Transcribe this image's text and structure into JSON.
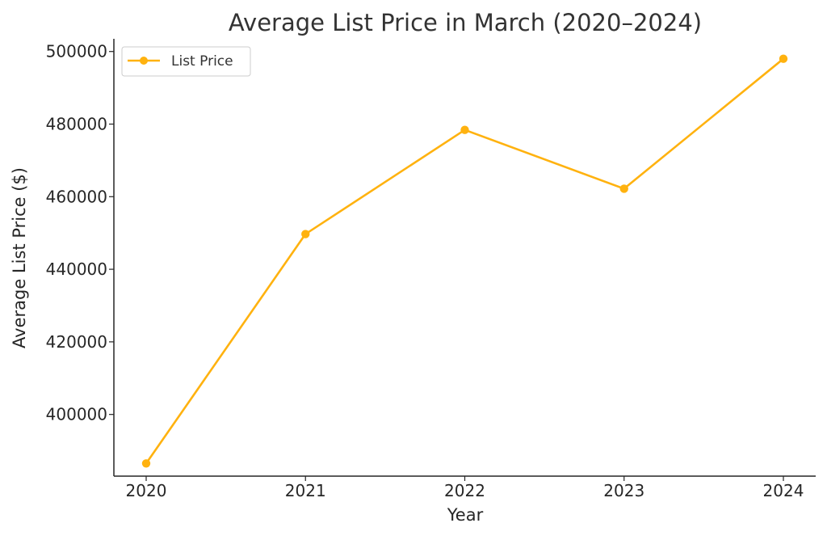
{
  "chart_data": {
    "type": "line",
    "title": "Average List Price in March (2020–2024)",
    "xlabel": "Year",
    "ylabel": "Average List Price ($)",
    "categories": [
      "2020",
      "2021",
      "2022",
      "2023",
      "2024"
    ],
    "series": [
      {
        "name": "List Price",
        "values": [
          386500,
          449700,
          478400,
          462200,
          498000
        ],
        "color": "#FFB20F",
        "marker": "circle"
      }
    ],
    "yticks": [
      400000,
      420000,
      440000,
      460000,
      480000,
      500000
    ],
    "ytick_labels": [
      "400000",
      "420000",
      "440000",
      "460000",
      "480000",
      "500000"
    ],
    "ylim": [
      383000,
      503500
    ],
    "grid": false,
    "legend_position": "top-left"
  }
}
